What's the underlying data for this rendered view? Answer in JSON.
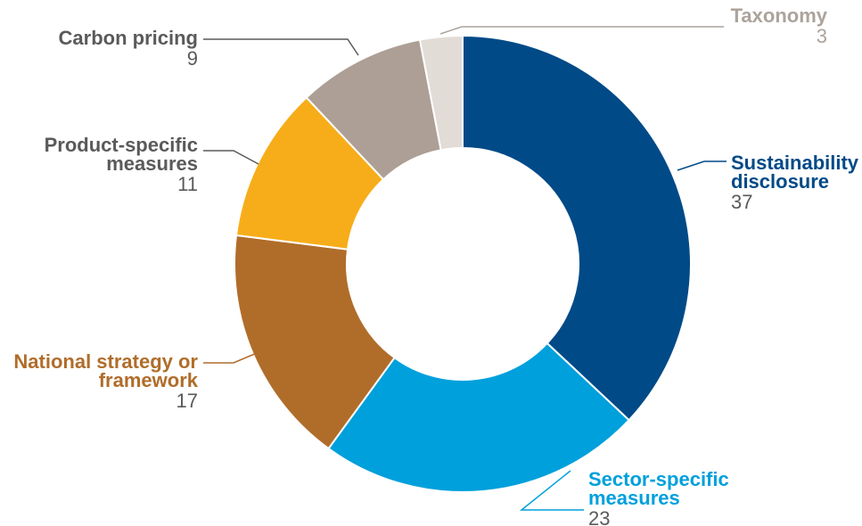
{
  "chart_data": {
    "type": "pie",
    "subtype": "donut",
    "title": "",
    "slices": [
      {
        "label": [
          "Sustainability",
          "disclosure"
        ],
        "value": 37,
        "color": "#004a87",
        "label_color": "#004a87"
      },
      {
        "label": [
          "Sector-specific",
          "measures"
        ],
        "value": 23,
        "color": "#00a0dc",
        "label_color": "#00a0dc"
      },
      {
        "label": [
          "National strategy or",
          "framework"
        ],
        "value": 17,
        "color": "#b06d2a",
        "label_color": "#b06d2a"
      },
      {
        "label": [
          "Product-specific",
          "measures"
        ],
        "value": 11,
        "color": "#f7ad19",
        "label_color": "#5a5a5a"
      },
      {
        "label": [
          "Carbon pricing"
        ],
        "value": 9,
        "color": "#ad9f95",
        "label_color": "#5a5a5a"
      },
      {
        "label": [
          "Taxonomy"
        ],
        "value": 3,
        "color": "#e2dcd7",
        "label_color": "#aca39b"
      }
    ],
    "value_color": "#5a5a5a",
    "legend": "none"
  }
}
